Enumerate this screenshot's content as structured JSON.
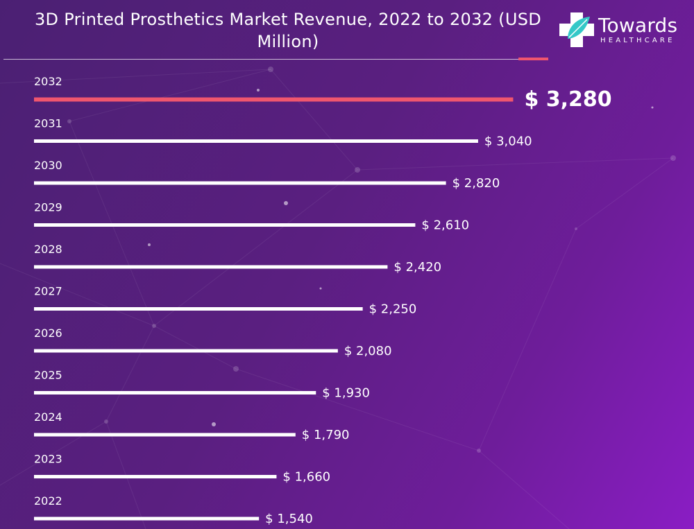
{
  "title": "3D Printed Prosthetics Market Revenue, 2022 to 2032 (USD Million)",
  "logo": {
    "name": "Towards",
    "sub": "HEALTHCARE",
    "icon": "medical-cross-leaf-icon"
  },
  "colors": {
    "bar": "#ffffff",
    "highlight": "#f0566e",
    "background_start": "#4b2073",
    "background_end": "#8a1dc4"
  },
  "chart_data": {
    "type": "bar",
    "orientation": "horizontal",
    "title": "3D Printed Prosthetics Market Revenue, 2022 to 2032 (USD Million)",
    "categories": [
      "2032",
      "2031",
      "2030",
      "2029",
      "2028",
      "2027",
      "2026",
      "2025",
      "2024",
      "2023",
      "2022"
    ],
    "values": [
      3280,
      3040,
      2820,
      2610,
      2420,
      2250,
      2080,
      1930,
      1790,
      1660,
      1540
    ],
    "value_labels": [
      "$ 3,280",
      "$ 3,040",
      "$ 2,820",
      "$ 2,610",
      "$ 2,420",
      "$ 2,250",
      "$ 2,080",
      "$ 1,930",
      "$ 1,790",
      "$ 1,660",
      "$ 1,540"
    ],
    "highlight_category": "2032",
    "xlabel": "",
    "ylabel": "",
    "grid": false,
    "legend": "none"
  }
}
